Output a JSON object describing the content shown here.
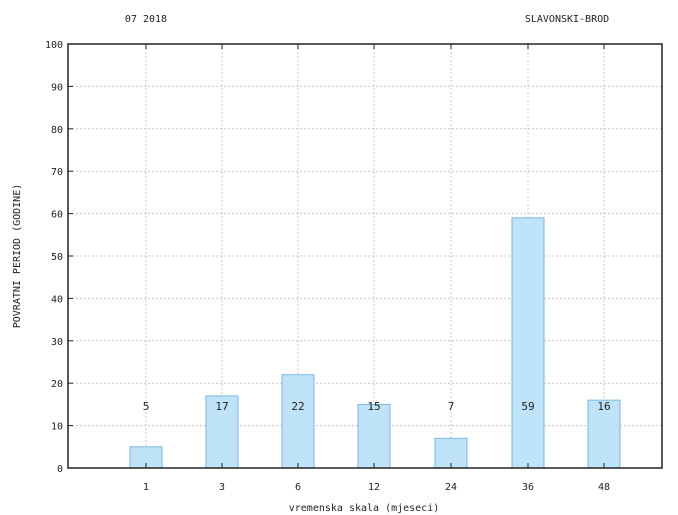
{
  "header": {
    "left_text": "07 2018",
    "right_text": "SLAVONSKI-BROD"
  },
  "chart_data": {
    "type": "bar",
    "categories": [
      "1",
      "3",
      "6",
      "12",
      "24",
      "36",
      "48"
    ],
    "values": [
      5,
      17,
      22,
      15,
      7,
      59,
      16
    ],
    "data_labels": [
      "5",
      "17",
      "22",
      "15",
      "7",
      "59",
      "16"
    ],
    "xlabel": "vremenska skala (mjeseci)",
    "ylabel": "POVRATNI PERIOD (GODINE)",
    "ylim": [
      0,
      100
    ],
    "yticks": [
      0,
      10,
      20,
      30,
      40,
      50,
      60,
      70,
      80,
      90,
      100
    ],
    "grid": true,
    "bar_color": "#bfe3f8",
    "bar_edge_color": "#7db6de"
  }
}
